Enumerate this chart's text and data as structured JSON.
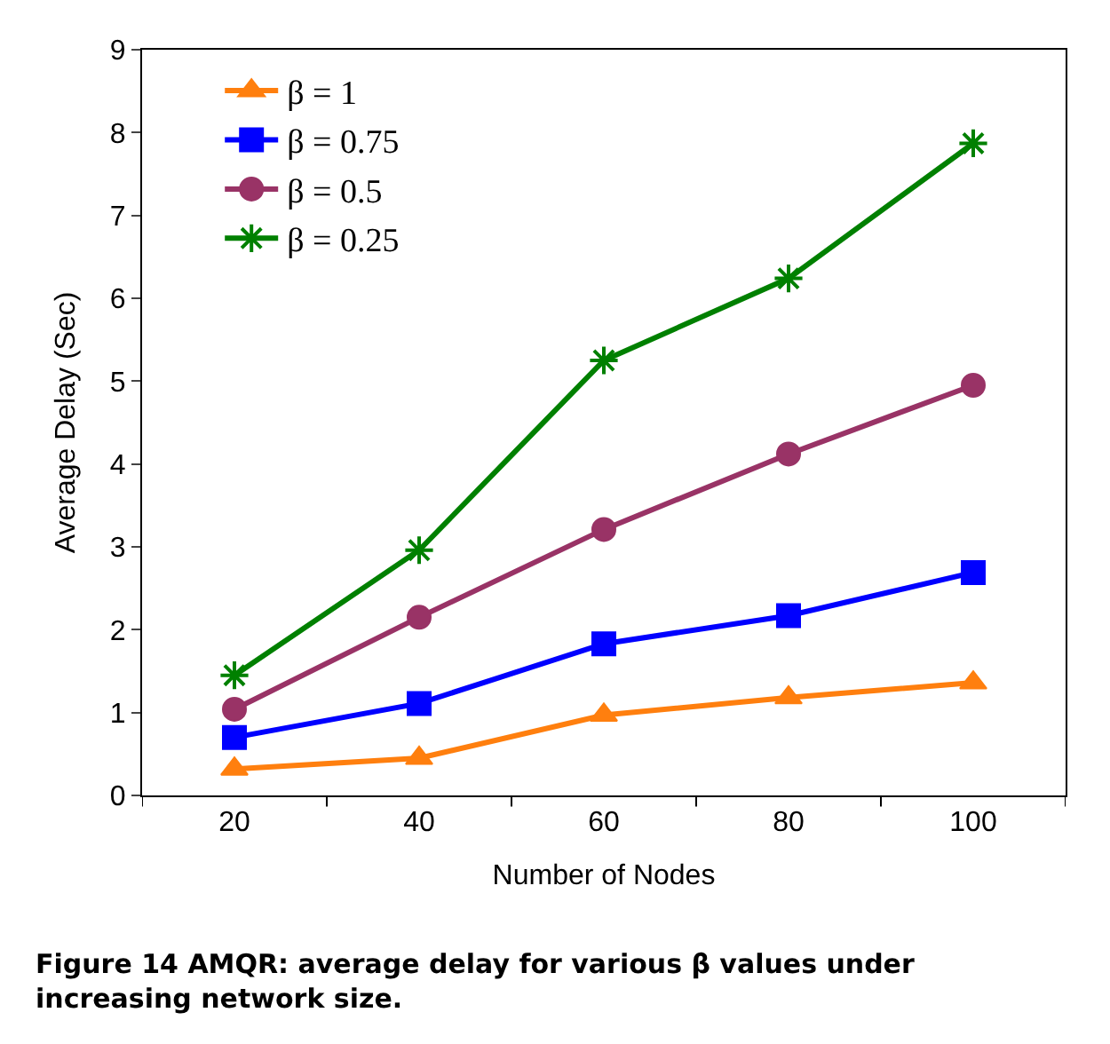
{
  "chart_data": {
    "type": "line",
    "xlabel": "Number of Nodes",
    "ylabel": "Average Delay (Sec)",
    "categories": [
      "20",
      "40",
      "60",
      "80",
      "100"
    ],
    "series": [
      {
        "name": "β = 1",
        "color": "#ff7f0e",
        "marker": "triangle",
        "values": [
          0.32,
          0.45,
          0.97,
          1.18,
          1.36
        ]
      },
      {
        "name": "β = 0.75",
        "color": "#0000ff",
        "marker": "square",
        "values": [
          0.7,
          1.11,
          1.83,
          2.17,
          2.69
        ]
      },
      {
        "name": "β = 0.5",
        "color": "#993366",
        "marker": "circle",
        "values": [
          1.04,
          2.15,
          3.21,
          4.12,
          4.95
        ]
      },
      {
        "name": "β = 0.25",
        "color": "#008000",
        "marker": "cross",
        "values": [
          1.45,
          2.96,
          5.25,
          6.24,
          7.87
        ]
      }
    ],
    "ylim": [
      0,
      9
    ],
    "yticks": [
      0,
      1,
      2,
      3,
      4,
      5,
      6,
      7,
      8,
      9
    ],
    "legend": "top left",
    "line_style": "solid",
    "annotations": [
      "Figure 14 AMQR: average delay for various β values under increasing network size."
    ]
  }
}
